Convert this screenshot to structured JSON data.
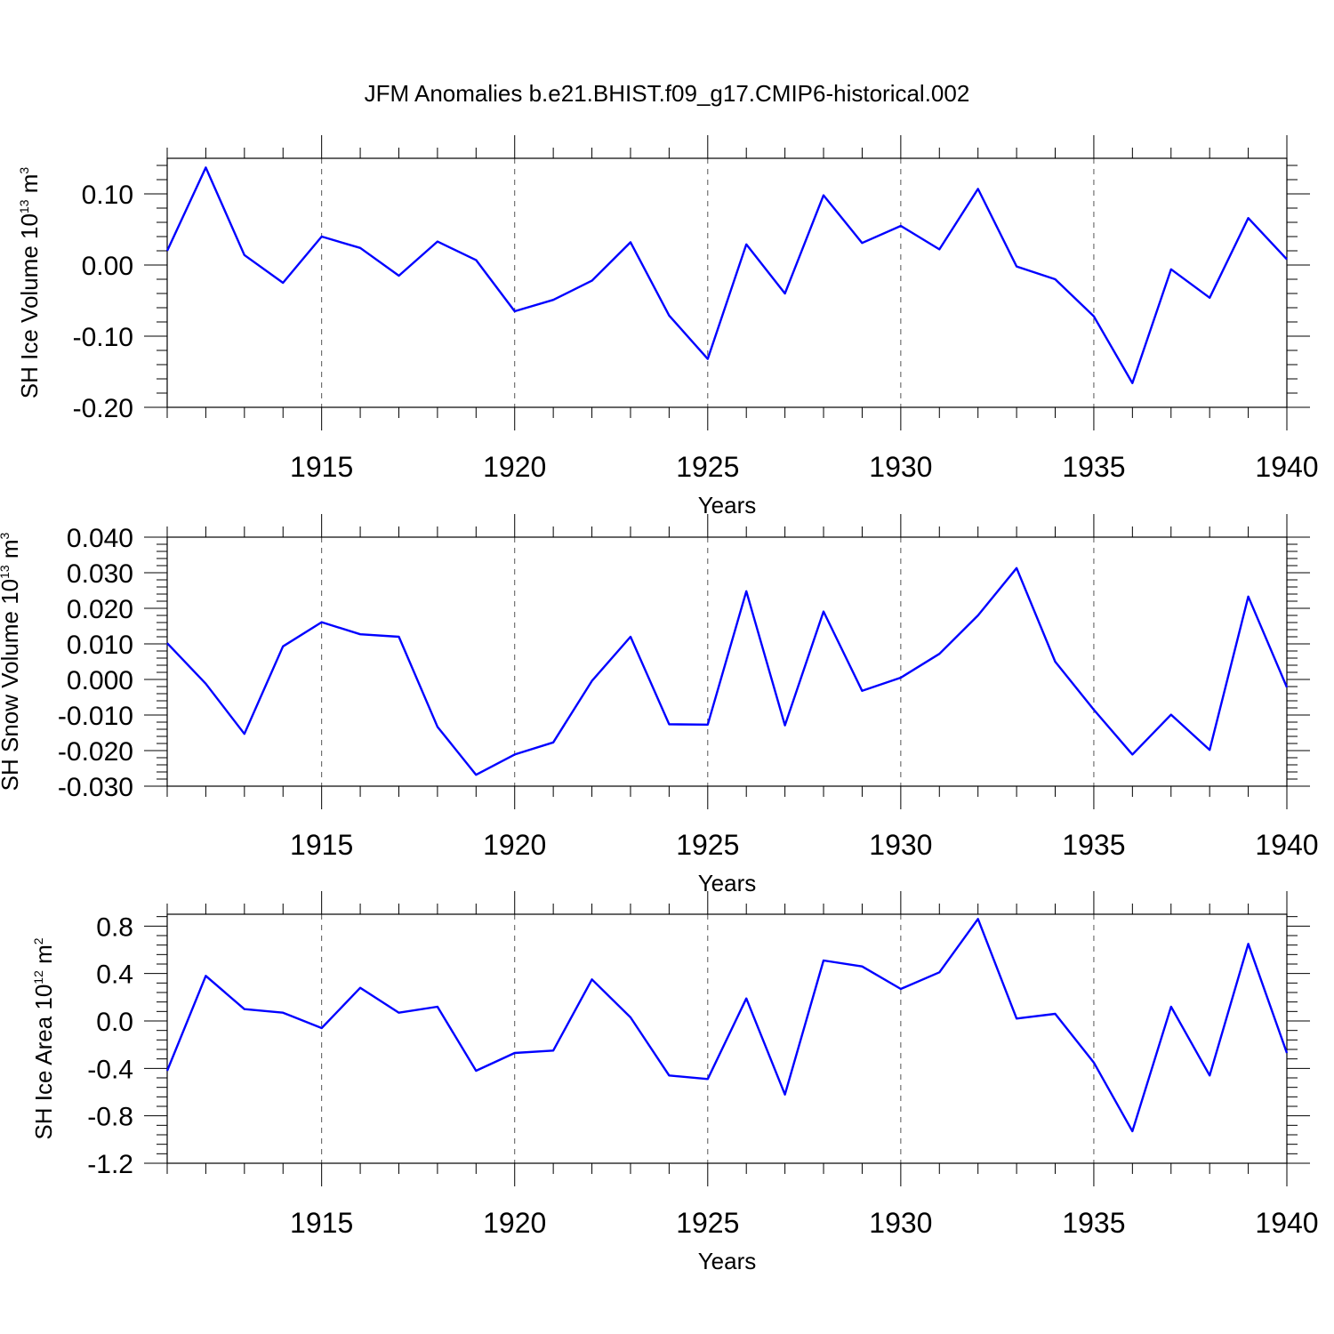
{
  "chart_data": {
    "type": "line",
    "title": "JFM Anomalies b.e21.BHIST.f09_g17.CMIP6-historical.002",
    "line_color": "#0000ff",
    "x": [
      1911,
      1912,
      1913,
      1914,
      1915,
      1916,
      1917,
      1918,
      1919,
      1920,
      1921,
      1922,
      1923,
      1924,
      1925,
      1926,
      1927,
      1928,
      1929,
      1930,
      1931,
      1932,
      1933,
      1934,
      1935,
      1936,
      1937,
      1938,
      1939,
      1940
    ],
    "xlim": [
      1911,
      1940
    ],
    "xticks": [
      "1915",
      "1920",
      "1925",
      "1930",
      "1935",
      "1940"
    ],
    "xtick_values": [
      1915,
      1920,
      1925,
      1930,
      1935,
      1940
    ],
    "panels": [
      {
        "xlabel": "Years",
        "ylabel": "SH Ice Volume 10",
        "ylabel_exp": "13",
        "ylabel_unit": " m",
        "ylabel_unit_exp": "3",
        "ylim": [
          -0.2,
          0.15
        ],
        "yticks": [
          "0.10",
          "0.00",
          "-0.10",
          "-0.20"
        ],
        "ytick_values": [
          0.1,
          0.0,
          -0.1,
          -0.2
        ],
        "values": [
          0.02,
          0.137,
          0.014,
          -0.025,
          0.04,
          0.024,
          -0.015,
          0.033,
          0.007,
          -0.065,
          -0.049,
          -0.022,
          0.032,
          -0.071,
          -0.132,
          0.029,
          -0.04,
          0.098,
          0.031,
          0.055,
          0.022,
          0.107,
          -0.002,
          -0.02,
          -0.072,
          -0.166,
          -0.006,
          -0.046,
          0.066,
          0.008
        ]
      },
      {
        "xlabel": "Years",
        "ylabel": "SH Snow Volume 10",
        "ylabel_exp": "13",
        "ylabel_unit": " m",
        "ylabel_unit_exp": "3",
        "ylim": [
          -0.03,
          0.04
        ],
        "yticks": [
          "0.040",
          "0.030",
          "0.020",
          "0.010",
          "0.000",
          "-0.010",
          "-0.020",
          "-0.030"
        ],
        "ytick_values": [
          0.04,
          0.03,
          0.02,
          0.01,
          0.0,
          -0.01,
          -0.02,
          -0.03
        ],
        "values": [
          0.0102,
          -0.0012,
          -0.0153,
          0.0093,
          0.0161,
          0.0127,
          0.012,
          -0.0133,
          -0.0268,
          -0.0211,
          -0.0177,
          -0.0004,
          0.012,
          -0.0126,
          -0.0127,
          0.0248,
          -0.0129,
          0.0191,
          -0.0032,
          0.0005,
          0.0072,
          0.018,
          0.0313,
          0.005,
          -0.0085,
          -0.0211,
          -0.0099,
          -0.0198,
          0.0233,
          -0.0022
        ]
      },
      {
        "xlabel": "Years",
        "ylabel": "SH Ice Area 10",
        "ylabel_exp": "12",
        "ylabel_unit": " m",
        "ylabel_unit_exp": "2",
        "ylim": [
          -1.2,
          0.9
        ],
        "yticks": [
          "0.8",
          "0.4",
          "0.0",
          "-0.4",
          "-0.8",
          "-1.2"
        ],
        "ytick_values": [
          0.8,
          0.4,
          0.0,
          -0.4,
          -0.8,
          -1.2
        ],
        "values": [
          -0.42,
          0.38,
          0.1,
          0.07,
          -0.06,
          0.28,
          0.07,
          0.12,
          -0.42,
          -0.27,
          -0.25,
          0.35,
          0.03,
          -0.46,
          -0.49,
          0.19,
          -0.62,
          0.51,
          0.46,
          0.27,
          0.41,
          0.86,
          0.02,
          0.06,
          -0.35,
          -0.93,
          0.12,
          -0.46,
          0.65,
          -0.27
        ]
      }
    ]
  }
}
